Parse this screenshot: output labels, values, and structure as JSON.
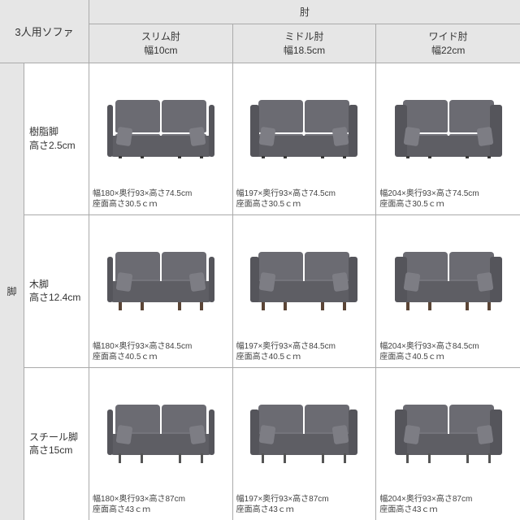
{
  "corner_label": "3人用ソファ",
  "col_group_label": "肘",
  "row_group_label": "脚",
  "columns": [
    {
      "name": "スリム肘",
      "spec": "幅10cm",
      "arm_class": "arm-slim"
    },
    {
      "name": "ミドル肘",
      "spec": "幅18.5cm",
      "arm_class": "arm-mid"
    },
    {
      "name": "ワイド肘",
      "spec": "幅22cm",
      "arm_class": "arm-wide"
    }
  ],
  "rows": [
    {
      "name": "樹脂脚",
      "spec": "高さ2.5cm",
      "leg_class": "leg-resin"
    },
    {
      "name": "木脚",
      "spec": "高さ12.4cm",
      "leg_class": "leg-wood"
    },
    {
      "name": "スチール脚",
      "spec": "高さ15cm",
      "leg_class": "leg-steel"
    }
  ],
  "cells": [
    [
      {
        "line1": "幅180×奥行93×高さ74.5cm",
        "line2": "座面高さ30.5ｃｍ"
      },
      {
        "line1": "幅197×奥行93×高さ74.5cm",
        "line2": "座面高さ30.5ｃｍ"
      },
      {
        "line1": "幅204×奥行93×高さ74.5cm",
        "line2": "座面高さ30.5ｃｍ"
      }
    ],
    [
      {
        "line1": "幅180×奥行93×高さ84.5cm",
        "line2": "座面高さ40.5ｃｍ"
      },
      {
        "line1": "幅197×奥行93×高さ84.5cm",
        "line2": "座面高さ40.5ｃｍ"
      },
      {
        "line1": "幅204×奥行93×高さ84.5cm",
        "line2": "座面高さ40.5ｃｍ"
      }
    ],
    [
      {
        "line1": "幅180×奥行93×高さ87cm",
        "line2": "座面高さ43ｃｍ"
      },
      {
        "line1": "幅197×奥行93×高さ87cm",
        "line2": "座面高さ43ｃｍ"
      },
      {
        "line1": "幅204×奥行93×高さ87cm",
        "line2": "座面高さ43ｃｍ"
      }
    ]
  ],
  "colors": {
    "header_bg": "#e6e6e6",
    "border": "#aaaaaa",
    "sofa_body": "#6b6b72",
    "text": "#333333"
  }
}
